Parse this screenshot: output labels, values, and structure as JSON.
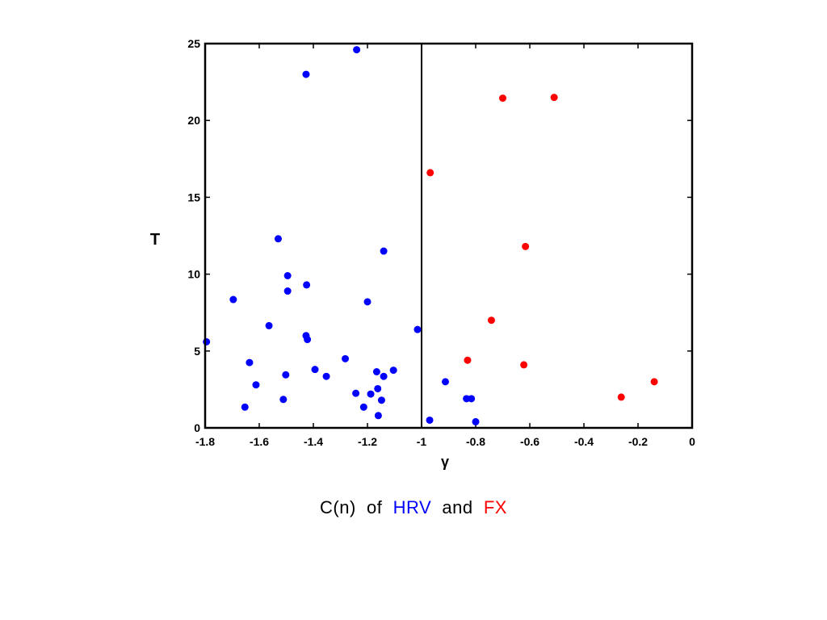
{
  "colors": {
    "hrv": "#0000ff",
    "fx": "#ff0000",
    "axis": "#000000"
  },
  "caption": {
    "prefix": "C(n)",
    "of": "of",
    "hrv": "HRV",
    "and": "and",
    "fx": "FX"
  },
  "chart_data": {
    "type": "scatter",
    "title": "C(n) of HRV and FX",
    "xlabel": "γ",
    "ylabel": "T",
    "xlim": [
      -1.8,
      0
    ],
    "ylim": [
      0,
      25
    ],
    "xticks": [
      -1.8,
      -1.6,
      -1.4,
      -1.2,
      -1,
      -0.8,
      -0.6,
      -0.4,
      -0.2,
      0
    ],
    "xtick_labels": [
      "-1.8",
      "-1.6",
      "-1.4",
      "-1.2",
      "-1",
      "-0.8",
      "-0.6",
      "-0.4",
      "-0.2",
      "0"
    ],
    "yticks": [
      0,
      5,
      10,
      15,
      20,
      25
    ],
    "ytick_labels": [
      "0",
      "5",
      "10",
      "15",
      "20",
      "25"
    ],
    "grid": false,
    "vertical_line_x": -1,
    "series": [
      {
        "name": "HRV",
        "color": "#0000ff",
        "points": [
          {
            "x": -1.24,
            "y": 24.6
          },
          {
            "x": -1.427,
            "y": 23.0
          },
          {
            "x": -1.53,
            "y": 12.3
          },
          {
            "x": -1.14,
            "y": 11.5
          },
          {
            "x": -1.495,
            "y": 9.9
          },
          {
            "x": -1.495,
            "y": 8.9
          },
          {
            "x": -1.425,
            "y": 9.3
          },
          {
            "x": -1.696,
            "y": 8.35
          },
          {
            "x": -1.2,
            "y": 8.2
          },
          {
            "x": -1.564,
            "y": 6.65
          },
          {
            "x": -1.015,
            "y": 6.4
          },
          {
            "x": -1.427,
            "y": 6.0
          },
          {
            "x": -1.422,
            "y": 5.75
          },
          {
            "x": -1.795,
            "y": 5.6
          },
          {
            "x": -1.282,
            "y": 4.5
          },
          {
            "x": -1.636,
            "y": 4.25
          },
          {
            "x": -1.394,
            "y": 3.8
          },
          {
            "x": -1.104,
            "y": 3.75
          },
          {
            "x": -1.166,
            "y": 3.65
          },
          {
            "x": -1.502,
            "y": 3.45
          },
          {
            "x": -1.352,
            "y": 3.35
          },
          {
            "x": -1.14,
            "y": 3.35
          },
          {
            "x": -1.612,
            "y": 2.8
          },
          {
            "x": -1.162,
            "y": 2.55
          },
          {
            "x": -1.243,
            "y": 2.25
          },
          {
            "x": -1.188,
            "y": 2.2
          },
          {
            "x": -1.511,
            "y": 1.85
          },
          {
            "x": -1.148,
            "y": 1.8
          },
          {
            "x": -1.653,
            "y": 1.35
          },
          {
            "x": -1.214,
            "y": 1.35
          },
          {
            "x": -1.16,
            "y": 0.8
          }
        ]
      },
      {
        "name": "FX",
        "color": "#ff0000",
        "points": [
          {
            "x": -0.51,
            "y": 21.5
          },
          {
            "x": -0.7,
            "y": 21.45
          },
          {
            "x": -0.968,
            "y": 16.6
          },
          {
            "x": -0.616,
            "y": 11.8
          },
          {
            "x": -0.742,
            "y": 7.0
          },
          {
            "x": -0.83,
            "y": 4.4
          },
          {
            "x": -0.622,
            "y": 4.1
          },
          {
            "x": -0.14,
            "y": 3.0
          },
          {
            "x": -0.262,
            "y": 2.0
          }
        ]
      },
      {
        "name": "HRV",
        "color": "#0000ff",
        "points": [
          {
            "x": -0.912,
            "y": 3.0
          },
          {
            "x": -0.834,
            "y": 1.9
          },
          {
            "x": -0.816,
            "y": 1.9
          },
          {
            "x": -0.97,
            "y": 0.5
          },
          {
            "x": -0.8,
            "y": 0.4
          }
        ]
      }
    ]
  }
}
